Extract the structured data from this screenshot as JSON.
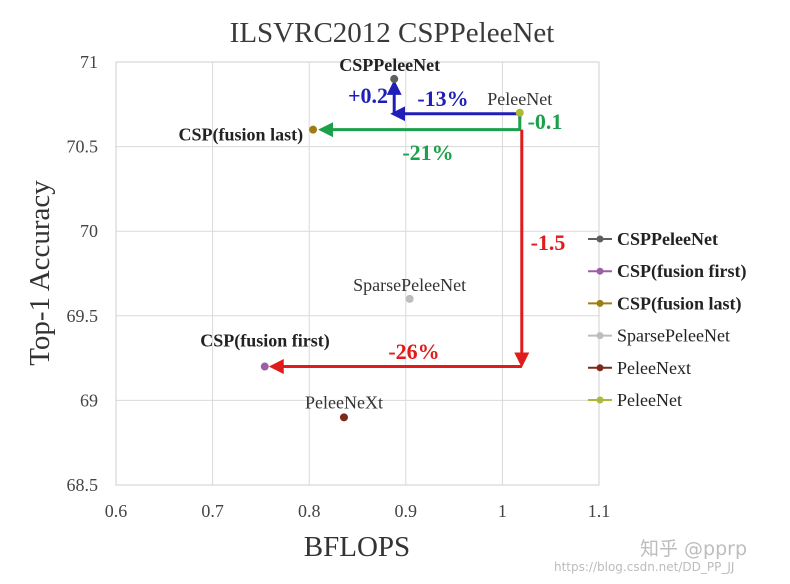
{
  "watermarks": {
    "primary": "知乎 @pprp",
    "url": "https://blog.csdn.net/DD_PP_JJ"
  },
  "chart_data": {
    "type": "scatter",
    "title": "ILSVRC2012 CSPPeleeNet",
    "xlabel": "BFLOPS",
    "ylabel": "Top-1 Accuracy",
    "xlim": [
      0.6,
      1.1
    ],
    "ylim": [
      68.5,
      71
    ],
    "xticks": [
      "0.6",
      "0.7",
      "0.8",
      "0.9",
      "1",
      "1.1"
    ],
    "yticks": [
      "68.5",
      "69",
      "69.5",
      "70",
      "70.5",
      "71"
    ],
    "grid": true,
    "legend_position": "right",
    "series": [
      {
        "name": "CSPPeleeNet",
        "x": 0.888,
        "y": 70.9,
        "color": "#5f5f5f",
        "bold": true
      },
      {
        "name": "CSP(fusion first)",
        "x": 0.754,
        "y": 69.2,
        "color": "#9b5fa5",
        "bold": true
      },
      {
        "name": "CSP(fusion last)",
        "x": 0.804,
        "y": 70.6,
        "color": "#a07d13",
        "bold": true
      },
      {
        "name": "SparsePeleeNet",
        "x": 0.904,
        "y": 69.6,
        "color": "#bdbdbd",
        "bold": false
      },
      {
        "name": "PeleeNext",
        "x": 0.836,
        "y": 68.9,
        "color": "#7b2a1d",
        "bold": false
      },
      {
        "name": "PeleeNet",
        "x": 1.018,
        "y": 70.7,
        "color": "#b0b83a",
        "bold": false
      }
    ],
    "point_labels": [
      {
        "series": 0,
        "text": "CSPPeleeNet",
        "bold": true
      },
      {
        "series": 1,
        "text": "CSP(fusion first)",
        "bold": true
      },
      {
        "series": 2,
        "text": "CSP(fusion last)",
        "bold": true
      },
      {
        "series": 3,
        "text": "SparsePeleeNet",
        "bold": false
      },
      {
        "series": 4,
        "text": "PeleeNeXt",
        "bold": false
      },
      {
        "series": 5,
        "text": "PeleeNet",
        "bold": false
      }
    ],
    "annotations": [
      {
        "text": "+0.2",
        "color": "#1f1fb8"
      },
      {
        "text": "-13%",
        "color": "#1f1fb8"
      },
      {
        "text": "-0.1",
        "color": "#1aa14a"
      },
      {
        "text": "-21%",
        "color": "#1aa14a"
      },
      {
        "text": "-1.5",
        "color": "#e01b1b"
      },
      {
        "text": "-26%",
        "color": "#e01b1b"
      }
    ]
  }
}
